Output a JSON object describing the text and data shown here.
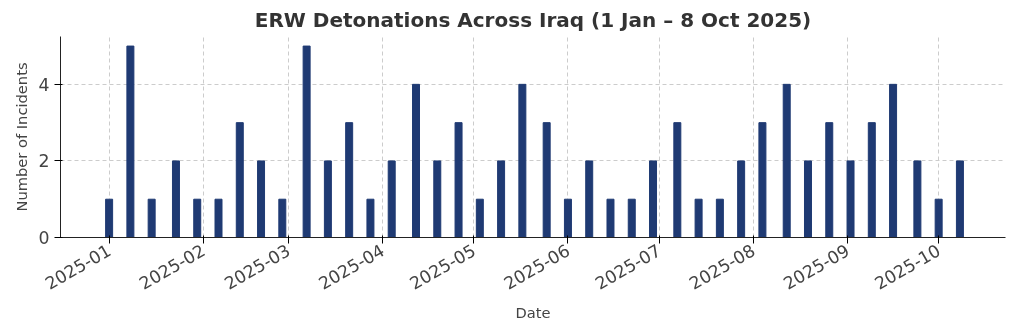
{
  "chart_data": {
    "type": "bar",
    "title": "ERW Detonations Across Iraq (1 Jan – 8 Oct 2025)",
    "xlabel": "Date",
    "ylabel": "Number of Incidents",
    "x": [
      "2025-01-01",
      "2025-01-08",
      "2025-01-15",
      "2025-01-23",
      "2025-01-30",
      "2025-02-06",
      "2025-02-13",
      "2025-02-20",
      "2025-02-27",
      "2025-03-07",
      "2025-03-14",
      "2025-03-21",
      "2025-03-28",
      "2025-04-04",
      "2025-04-12",
      "2025-04-19",
      "2025-04-26",
      "2025-05-03",
      "2025-05-10",
      "2025-05-17",
      "2025-05-25",
      "2025-06-01",
      "2025-06-08",
      "2025-06-15",
      "2025-06-22",
      "2025-06-29",
      "2025-07-07",
      "2025-07-14",
      "2025-07-21",
      "2025-07-28",
      "2025-08-04",
      "2025-08-12",
      "2025-08-19",
      "2025-08-26",
      "2025-09-02",
      "2025-09-09",
      "2025-09-16",
      "2025-09-24",
      "2025-10-01",
      "2025-10-08"
    ],
    "series": [
      {
        "color": "#1f3a73",
        "values": [
          1,
          5,
          1,
          2,
          1,
          1,
          3,
          2,
          1,
          5,
          2,
          3,
          1,
          2,
          4,
          2,
          3,
          1,
          2,
          4,
          3,
          1,
          2,
          1,
          1,
          2,
          3,
          1,
          1,
          2,
          3,
          4,
          2,
          3,
          2,
          3,
          4,
          2,
          1,
          2
        ]
      }
    ],
    "xlim": [
      "2024-12-16",
      "2025-10-23"
    ],
    "xticks": [
      {
        "value": "2025-01-01",
        "label": "2025-01"
      },
      {
        "value": "2025-02-01",
        "label": "2025-02"
      },
      {
        "value": "2025-03-01",
        "label": "2025-03"
      },
      {
        "value": "2025-04-01",
        "label": "2025-04"
      },
      {
        "value": "2025-05-01",
        "label": "2025-05"
      },
      {
        "value": "2025-06-01",
        "label": "2025-06"
      },
      {
        "value": "2025-07-01",
        "label": "2025-07"
      },
      {
        "value": "2025-08-01",
        "label": "2025-08"
      },
      {
        "value": "2025-09-01",
        "label": "2025-09"
      },
      {
        "value": "2025-10-01",
        "label": "2025-10"
      }
    ],
    "ylim": [
      0,
      5.25
    ],
    "yticks": [
      0,
      2,
      4
    ],
    "grid": true
  }
}
